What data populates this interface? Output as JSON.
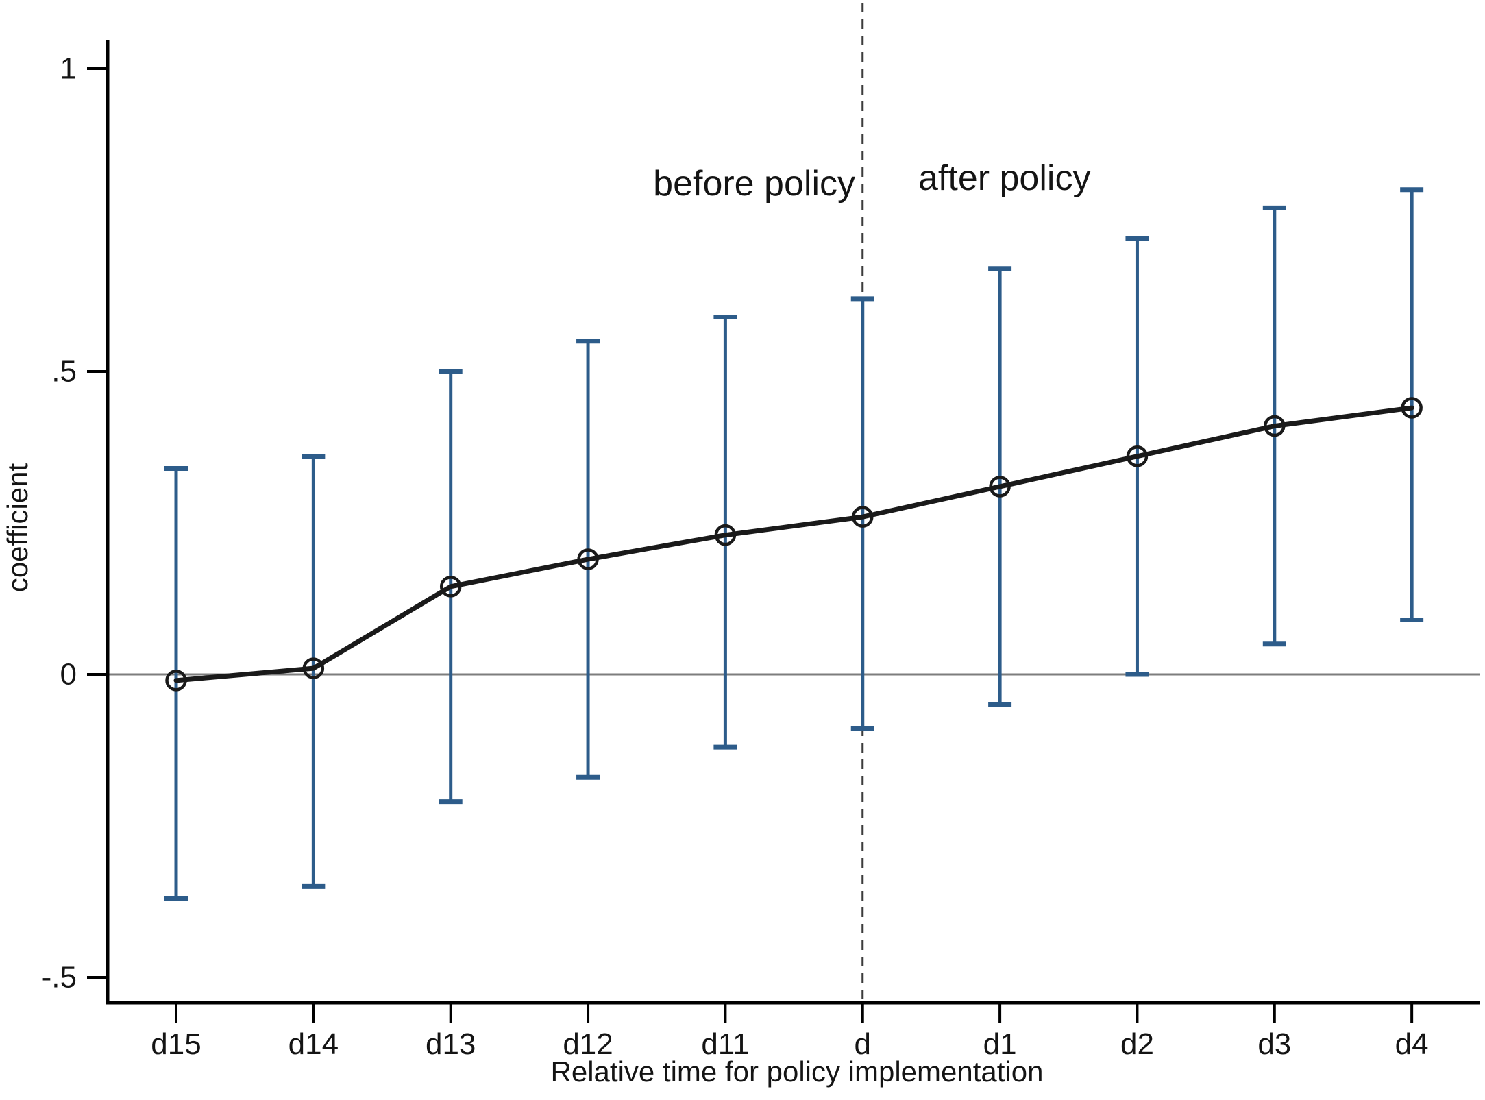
{
  "figure": {
    "colors": {
      "error_bar": "#2d5c8a",
      "series_line": "#1a1a1a",
      "marker_edge": "#1a1a1a",
      "zero_line": "#7d7d7d",
      "dashed_line": "#3c3c3c",
      "axis": "#000000",
      "text": "#141414"
    }
  },
  "chart_data": {
    "type": "line",
    "title": "",
    "xlabel": "Relative time for policy implementation",
    "ylabel": "coefficient",
    "categories": [
      "d15",
      "d14",
      "d13",
      "d12",
      "d11",
      "d",
      "d1",
      "d2",
      "d3",
      "d4"
    ],
    "series": [
      {
        "name": "coefficient",
        "values": [
          -0.01,
          0.01,
          0.145,
          0.19,
          0.23,
          0.26,
          0.31,
          0.36,
          0.41,
          0.44
        ]
      }
    ],
    "ci_low": [
      -0.37,
      -0.35,
      -0.21,
      -0.17,
      -0.12,
      -0.09,
      -0.05,
      0.0,
      0.05,
      0.09
    ],
    "ci_high": [
      0.34,
      0.36,
      0.5,
      0.55,
      0.59,
      0.62,
      0.67,
      0.72,
      0.77,
      0.8
    ],
    "yticks": [
      {
        "value": 1,
        "label": "1"
      },
      {
        "value": 0.5,
        "label": ".5"
      },
      {
        "value": 0,
        "label": "0"
      },
      {
        "value": -0.5,
        "label": "-.5"
      }
    ],
    "ylim": [
      -0.54,
      1.05
    ],
    "grid": "off",
    "legend": "none",
    "zero_reference_line": 0,
    "vline": {
      "at_category": "d",
      "style": "dashed"
    },
    "annotations": {
      "before": "before policy",
      "after": "after policy"
    }
  }
}
